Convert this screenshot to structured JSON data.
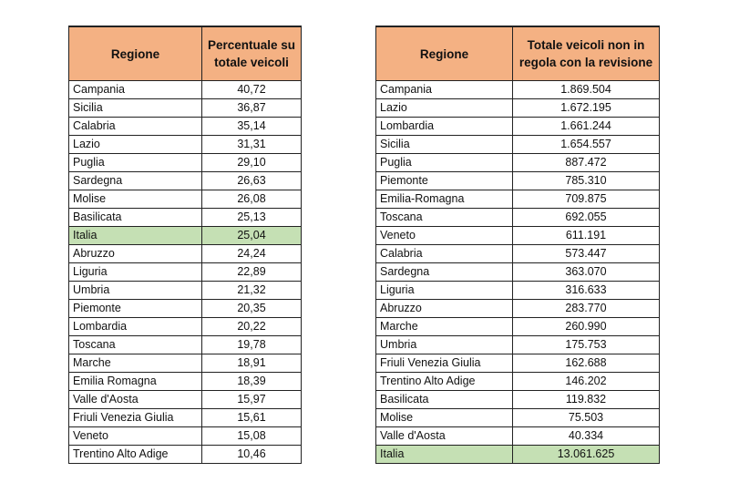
{
  "left_table": {
    "headers": [
      "Regione",
      "Percentuale su totale veicoli"
    ],
    "rows": [
      [
        "Campania",
        "40,72"
      ],
      [
        "Sicilia",
        "36,87"
      ],
      [
        "Calabria",
        "35,14"
      ],
      [
        "Lazio",
        "31,31"
      ],
      [
        "Puglia",
        "29,10"
      ],
      [
        "Sardegna",
        "26,63"
      ],
      [
        "Molise",
        "26,08"
      ],
      [
        "Basilicata",
        "25,13"
      ],
      [
        "Italia",
        "25,04"
      ],
      [
        "Abruzzo",
        "24,24"
      ],
      [
        "Liguria",
        "22,89"
      ],
      [
        "Umbria",
        "21,32"
      ],
      [
        "Piemonte",
        "20,35"
      ],
      [
        "Lombardia",
        "20,22"
      ],
      [
        "Toscana",
        "19,78"
      ],
      [
        "Marche",
        "18,91"
      ],
      [
        "Emilia Romagna",
        "18,39"
      ],
      [
        "Valle d'Aosta",
        "15,97"
      ],
      [
        "Friuli Venezia Giulia",
        "15,61"
      ],
      [
        "Veneto",
        "15,08"
      ],
      [
        "Trentino Alto Adige",
        "10,46"
      ]
    ],
    "highlight_row": "Italia"
  },
  "right_table": {
    "headers": [
      "Regione",
      "Totale veicoli non in regola con la revisione"
    ],
    "rows": [
      [
        "Campania",
        "1.869.504"
      ],
      [
        "Lazio",
        "1.672.195"
      ],
      [
        "Lombardia",
        "1.661.244"
      ],
      [
        "Sicilia",
        "1.654.557"
      ],
      [
        "Puglia",
        "887.472"
      ],
      [
        "Piemonte",
        "785.310"
      ],
      [
        "Emilia-Romagna",
        "709.875"
      ],
      [
        "Toscana",
        "692.055"
      ],
      [
        "Veneto",
        "611.191"
      ],
      [
        "Calabria",
        "573.447"
      ],
      [
        "Sardegna",
        "363.070"
      ],
      [
        "Liguria",
        "316.633"
      ],
      [
        "Abruzzo",
        "283.770"
      ],
      [
        "Marche",
        "260.990"
      ],
      [
        "Umbria",
        "175.753"
      ],
      [
        "Friuli Venezia Giulia",
        "162.688"
      ],
      [
        "Trentino Alto Adige",
        "146.202"
      ],
      [
        "Basilicata",
        "119.832"
      ],
      [
        "Molise",
        "75.503"
      ],
      [
        "Valle d'Aosta",
        "40.334"
      ],
      [
        "Italia",
        "13.061.625"
      ]
    ],
    "highlight_row": "Italia"
  },
  "colors": {
    "header": "#F4B183",
    "highlight": "#C5E0B4"
  }
}
